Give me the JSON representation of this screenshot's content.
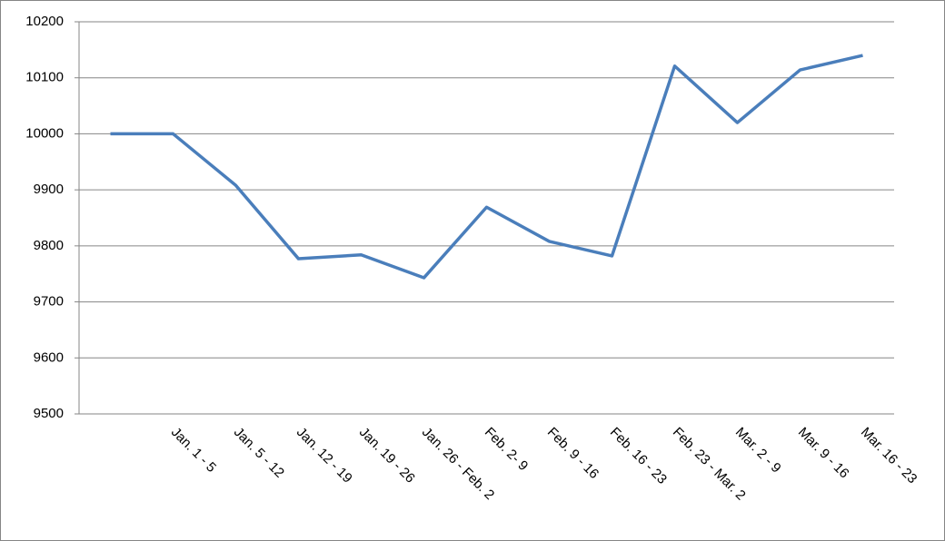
{
  "chart_data": {
    "type": "line",
    "categories": [
      null,
      "Jan. 1 - 5",
      "Jan. 5 - 12",
      "Jan. 12 - 19",
      "Jan. 19 - 26",
      "Jan. 26 - Feb. 2",
      "Feb. 2- 9",
      "Feb. 9 - 16",
      "Feb. 16 - 23",
      "Feb. 23 - Mar. 2",
      "Mar. 2 - 9",
      "Mar. 9 - 16",
      "Mar. 16 - 23"
    ],
    "values": [
      10000,
      10000,
      9908,
      9777,
      9784,
      9743,
      9869,
      9808,
      9782,
      10121,
      10020,
      10114,
      10140
    ],
    "color": "#4a7ebb",
    "ylim": [
      9500,
      10200
    ],
    "yticks": [
      9500,
      9600,
      9700,
      9800,
      9900,
      10000,
      10100,
      10200
    ],
    "grid": true
  }
}
